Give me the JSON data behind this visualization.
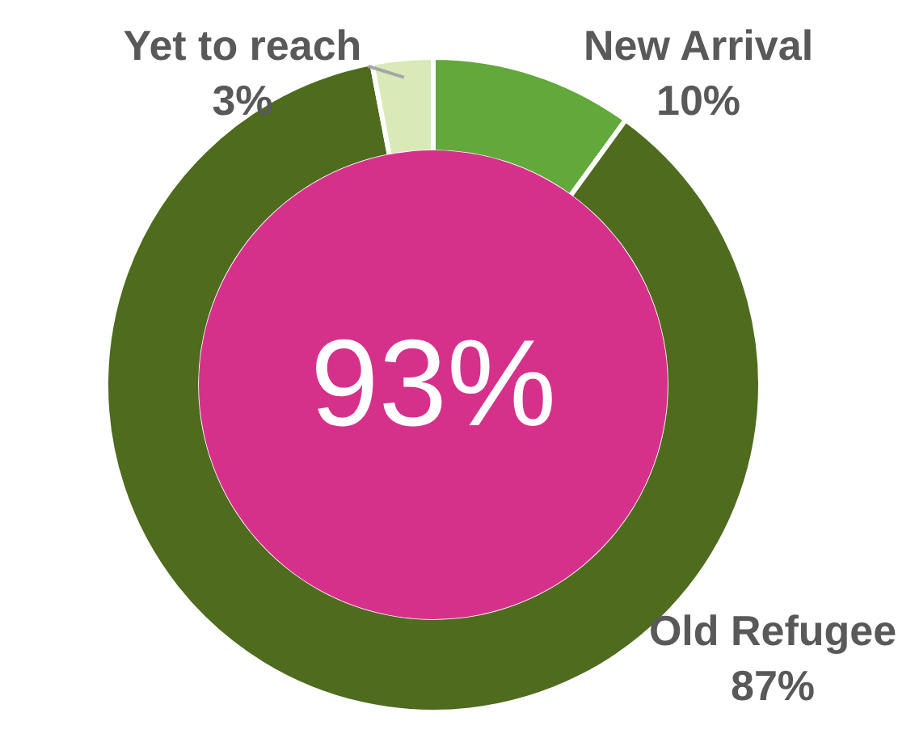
{
  "chart_data": {
    "type": "donut",
    "categories": [
      "New Arrival",
      "Old Refugee",
      "Yet to reach"
    ],
    "values": [
      10,
      87,
      3
    ],
    "value_labels": [
      "10%",
      "87%",
      "3%"
    ],
    "colors": [
      "#62a83a",
      "#4e6b1e",
      "#d8eab8"
    ],
    "annotations": [
      "93%"
    ],
    "legend": false
  }
}
